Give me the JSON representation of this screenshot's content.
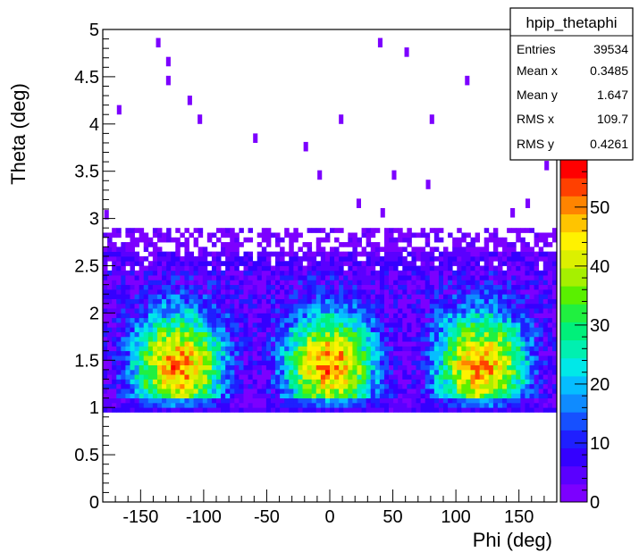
{
  "chart_data": {
    "type": "heatmap",
    "xlabel": "Phi (deg)",
    "ylabel": "Theta (deg)",
    "xlim": [
      -180,
      180
    ],
    "ylim": [
      0,
      5
    ],
    "x_ticks": [
      -150,
      -100,
      -50,
      0,
      50,
      100,
      150
    ],
    "y_ticks": [
      0,
      0.5,
      1,
      1.5,
      2,
      2.5,
      3,
      3.5,
      4,
      4.5,
      5
    ],
    "z_range": [
      0,
      58
    ],
    "z_ticks": [
      0,
      10,
      20,
      30,
      40,
      50
    ],
    "bins": {
      "phi_bins": 100,
      "theta_bins": 100,
      "theta_min": 0.95,
      "theta_max": 2.9
    },
    "sparse_points": [
      [
        -177,
        3.04
      ],
      [
        -167,
        4.15
      ],
      [
        -136,
        4.86
      ],
      [
        -128,
        4.66
      ],
      [
        -128,
        4.46
      ],
      [
        -111,
        4.25
      ],
      [
        -103,
        4.05
      ],
      [
        -59,
        3.85
      ],
      [
        -19,
        3.76
      ],
      [
        -8,
        3.46
      ],
      [
        9,
        4.05
      ],
      [
        23,
        3.16
      ],
      [
        40,
        4.86
      ],
      [
        42,
        3.06
      ],
      [
        51,
        3.46
      ],
      [
        61,
        4.76
      ],
      [
        78,
        3.36
      ],
      [
        81,
        4.05
      ],
      [
        109,
        4.46
      ],
      [
        145,
        3.06
      ],
      [
        157,
        3.16
      ],
      [
        172,
        3.56
      ]
    ],
    "stats": {
      "title": "hpip_thetaphi",
      "rows": [
        {
          "label": "Entries",
          "value": "39534"
        },
        {
          "label": "Mean x",
          "value": "0.3485"
        },
        {
          "label": "Mean y",
          "value": "1.647"
        },
        {
          "label": "RMS x",
          "value": "109.7"
        },
        {
          "label": "RMS y",
          "value": "0.4261"
        }
      ]
    },
    "palette": [
      "#7c00ff",
      "#5a00ff",
      "#3400ff",
      "#1f1fff",
      "#1650ff",
      "#0f8bff",
      "#06bdff",
      "#00e8e8",
      "#00f0b0",
      "#00f07a",
      "#20f040",
      "#5af000",
      "#a6f000",
      "#dcf000",
      "#fff200",
      "#ffc400",
      "#ff8400",
      "#ff4000",
      "#ff0000"
    ],
    "grid": false
  }
}
